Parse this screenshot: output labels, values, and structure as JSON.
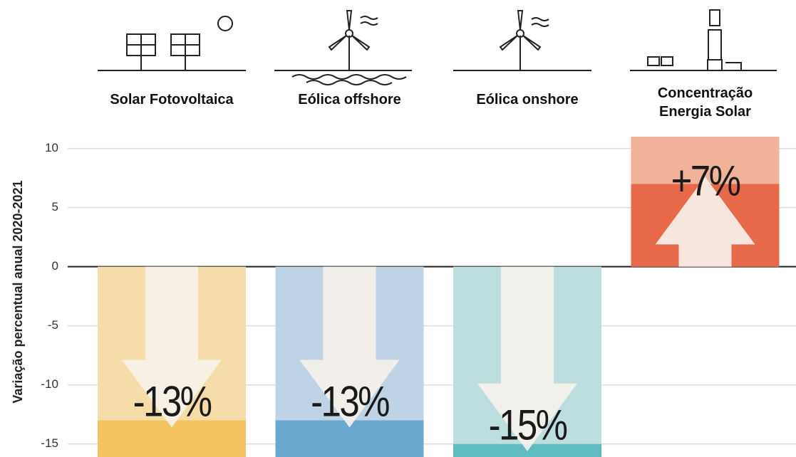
{
  "chart_data": {
    "type": "bar",
    "y_label": "Variação percentual anual 2020-2021",
    "categories": [
      "Solar Fotovoltaica",
      "Eólica offshore",
      "Eólica onshore",
      "Concentração Energia Solar"
    ],
    "values": [
      -13,
      -13,
      -15,
      7
    ],
    "value_labels": [
      "-13%",
      "-13%",
      "-15%",
      "+7%"
    ],
    "colors": [
      "#f2c35e",
      "#6aa8d0",
      "#5fbdc2",
      "#e8694a"
    ],
    "light_colors": [
      "#f6dca9",
      "#bed3e6",
      "#bcdedf",
      "#f0b39a"
    ],
    "ylim": [
      -16.1,
      11
    ],
    "yticks": [
      10,
      5,
      0,
      -5,
      -10,
      -15
    ],
    "grid": true
  }
}
